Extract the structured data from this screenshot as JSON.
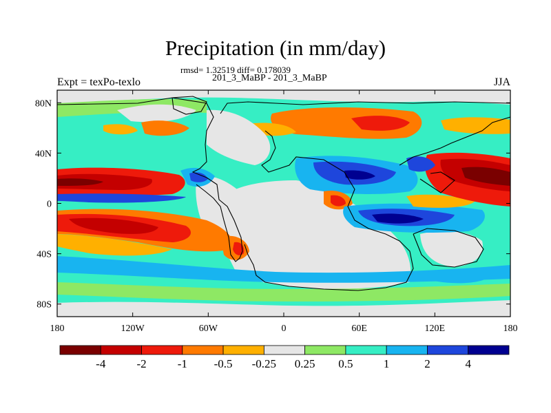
{
  "title": "Precipitation (in mm/day)",
  "stats_line": "rmsd= 1.32519 diff= 0.178039",
  "case_line": "201_3_MaBP - 201_3_MaBP",
  "left_title": "Expt = texPo-texlo",
  "right_title": "JJA",
  "colors": {
    "land_outline": "#000000",
    "bins": [
      "#7a0000",
      "#c40000",
      "#ee1a0b",
      "#ff7a00",
      "#ffb000",
      "#e6e6e6",
      "#8ee864",
      "#36eec4",
      "#18b4f0",
      "#1e46dc",
      "#000090"
    ]
  },
  "chart_data": {
    "type": "heatmap",
    "title": "Precipitation (in mm/day)",
    "subtitle": "rmsd= 1.32519 diff= 0.178039",
    "variable": "precipitation difference",
    "units": "mm/day",
    "season": "JJA",
    "projection": "cylindrical equidistant",
    "xlim": [
      -180,
      180
    ],
    "ylim": [
      -90,
      90
    ],
    "x_ticks": [
      -180,
      -120,
      -60,
      0,
      60,
      120,
      180
    ],
    "x_tick_labels": [
      "180",
      "120W",
      "60W",
      "0",
      "60E",
      "120E",
      "180"
    ],
    "y_ticks": [
      80,
      40,
      0,
      -40,
      -80
    ],
    "y_tick_labels": [
      "80N",
      "40N",
      "0",
      "40S",
      "80S"
    ],
    "colorbar": {
      "levels": [
        -4,
        -2,
        -1,
        -0.5,
        -0.25,
        0.25,
        0.5,
        1,
        2,
        4
      ],
      "labels": [
        "-4",
        "-2",
        "-1",
        "-0.5",
        "-0.25",
        "0.25",
        "0.5",
        "1",
        "2",
        "4"
      ],
      "bin_count": 11
    },
    "features": [
      {
        "name": "tropical Pacific drying north of equator",
        "lon": [
          -180,
          -95
        ],
        "lat": [
          5,
          22
        ],
        "value": -4
      },
      {
        "name": "south Pacific drying band",
        "lon": [
          -180,
          -55
        ],
        "lat": [
          -30,
          -8
        ],
        "value": -3
      },
      {
        "name": "south Atlantic drying",
        "lon": [
          -40,
          -15
        ],
        "lat": [
          -42,
          -25
        ],
        "value": -1
      },
      {
        "name": "high-latitude Eurasia drying",
        "lon": [
          0,
          130
        ],
        "lat": [
          45,
          75
        ],
        "value": -0.7
      },
      {
        "name": "Asian monsoon wetting",
        "lon": [
          30,
          110
        ],
        "lat": [
          10,
          32
        ],
        "value": 2.5
      },
      {
        "name": "Indian Ocean wetting",
        "lon": [
          60,
          140
        ],
        "lat": [
          -20,
          -5
        ],
        "value": 3
      },
      {
        "name": "west Pacific drying",
        "lon": [
          125,
          180
        ],
        "lat": [
          10,
          35
        ],
        "value": -3
      },
      {
        "name": "Southern Ocean wetting",
        "lon": [
          -180,
          180
        ],
        "lat": [
          -65,
          -35
        ],
        "value": 0.8
      },
      {
        "name": "equatorial Pacific wetting",
        "lon": [
          -180,
          -60
        ],
        "lat": [
          -6,
          4
        ],
        "value": 1
      }
    ]
  }
}
